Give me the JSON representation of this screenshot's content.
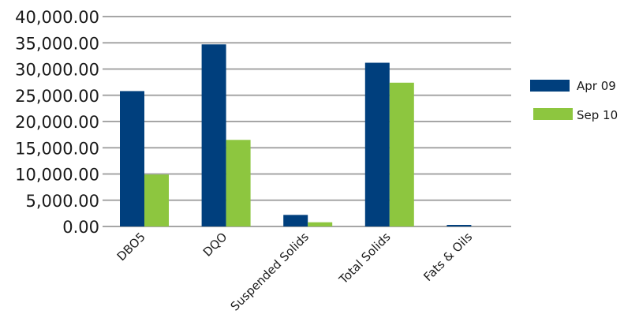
{
  "chart_data": {
    "type": "bar",
    "categories": [
      "DBO5",
      "DQO",
      "Suspended Solids",
      "Total Solids",
      "Fats & Oils"
    ],
    "series": [
      {
        "name": "Apr 09",
        "values": [
          25800,
          34700,
          2200,
          31200,
          300
        ],
        "color": "#003f7d"
      },
      {
        "name": "Sep 10",
        "values": [
          9900,
          16500,
          800,
          27400,
          0
        ],
        "color": "#8dc63f"
      }
    ],
    "yticks": [
      "0.00",
      "5,000.00",
      "10,000.00",
      "15,000.00",
      "20,000.00",
      "25,000.00",
      "30,000.00",
      "35,000.00",
      "40,000.00"
    ],
    "ylim": [
      0,
      40000
    ],
    "grid": true,
    "legend_position": "right",
    "gridline_color": "#a6a6a6"
  }
}
